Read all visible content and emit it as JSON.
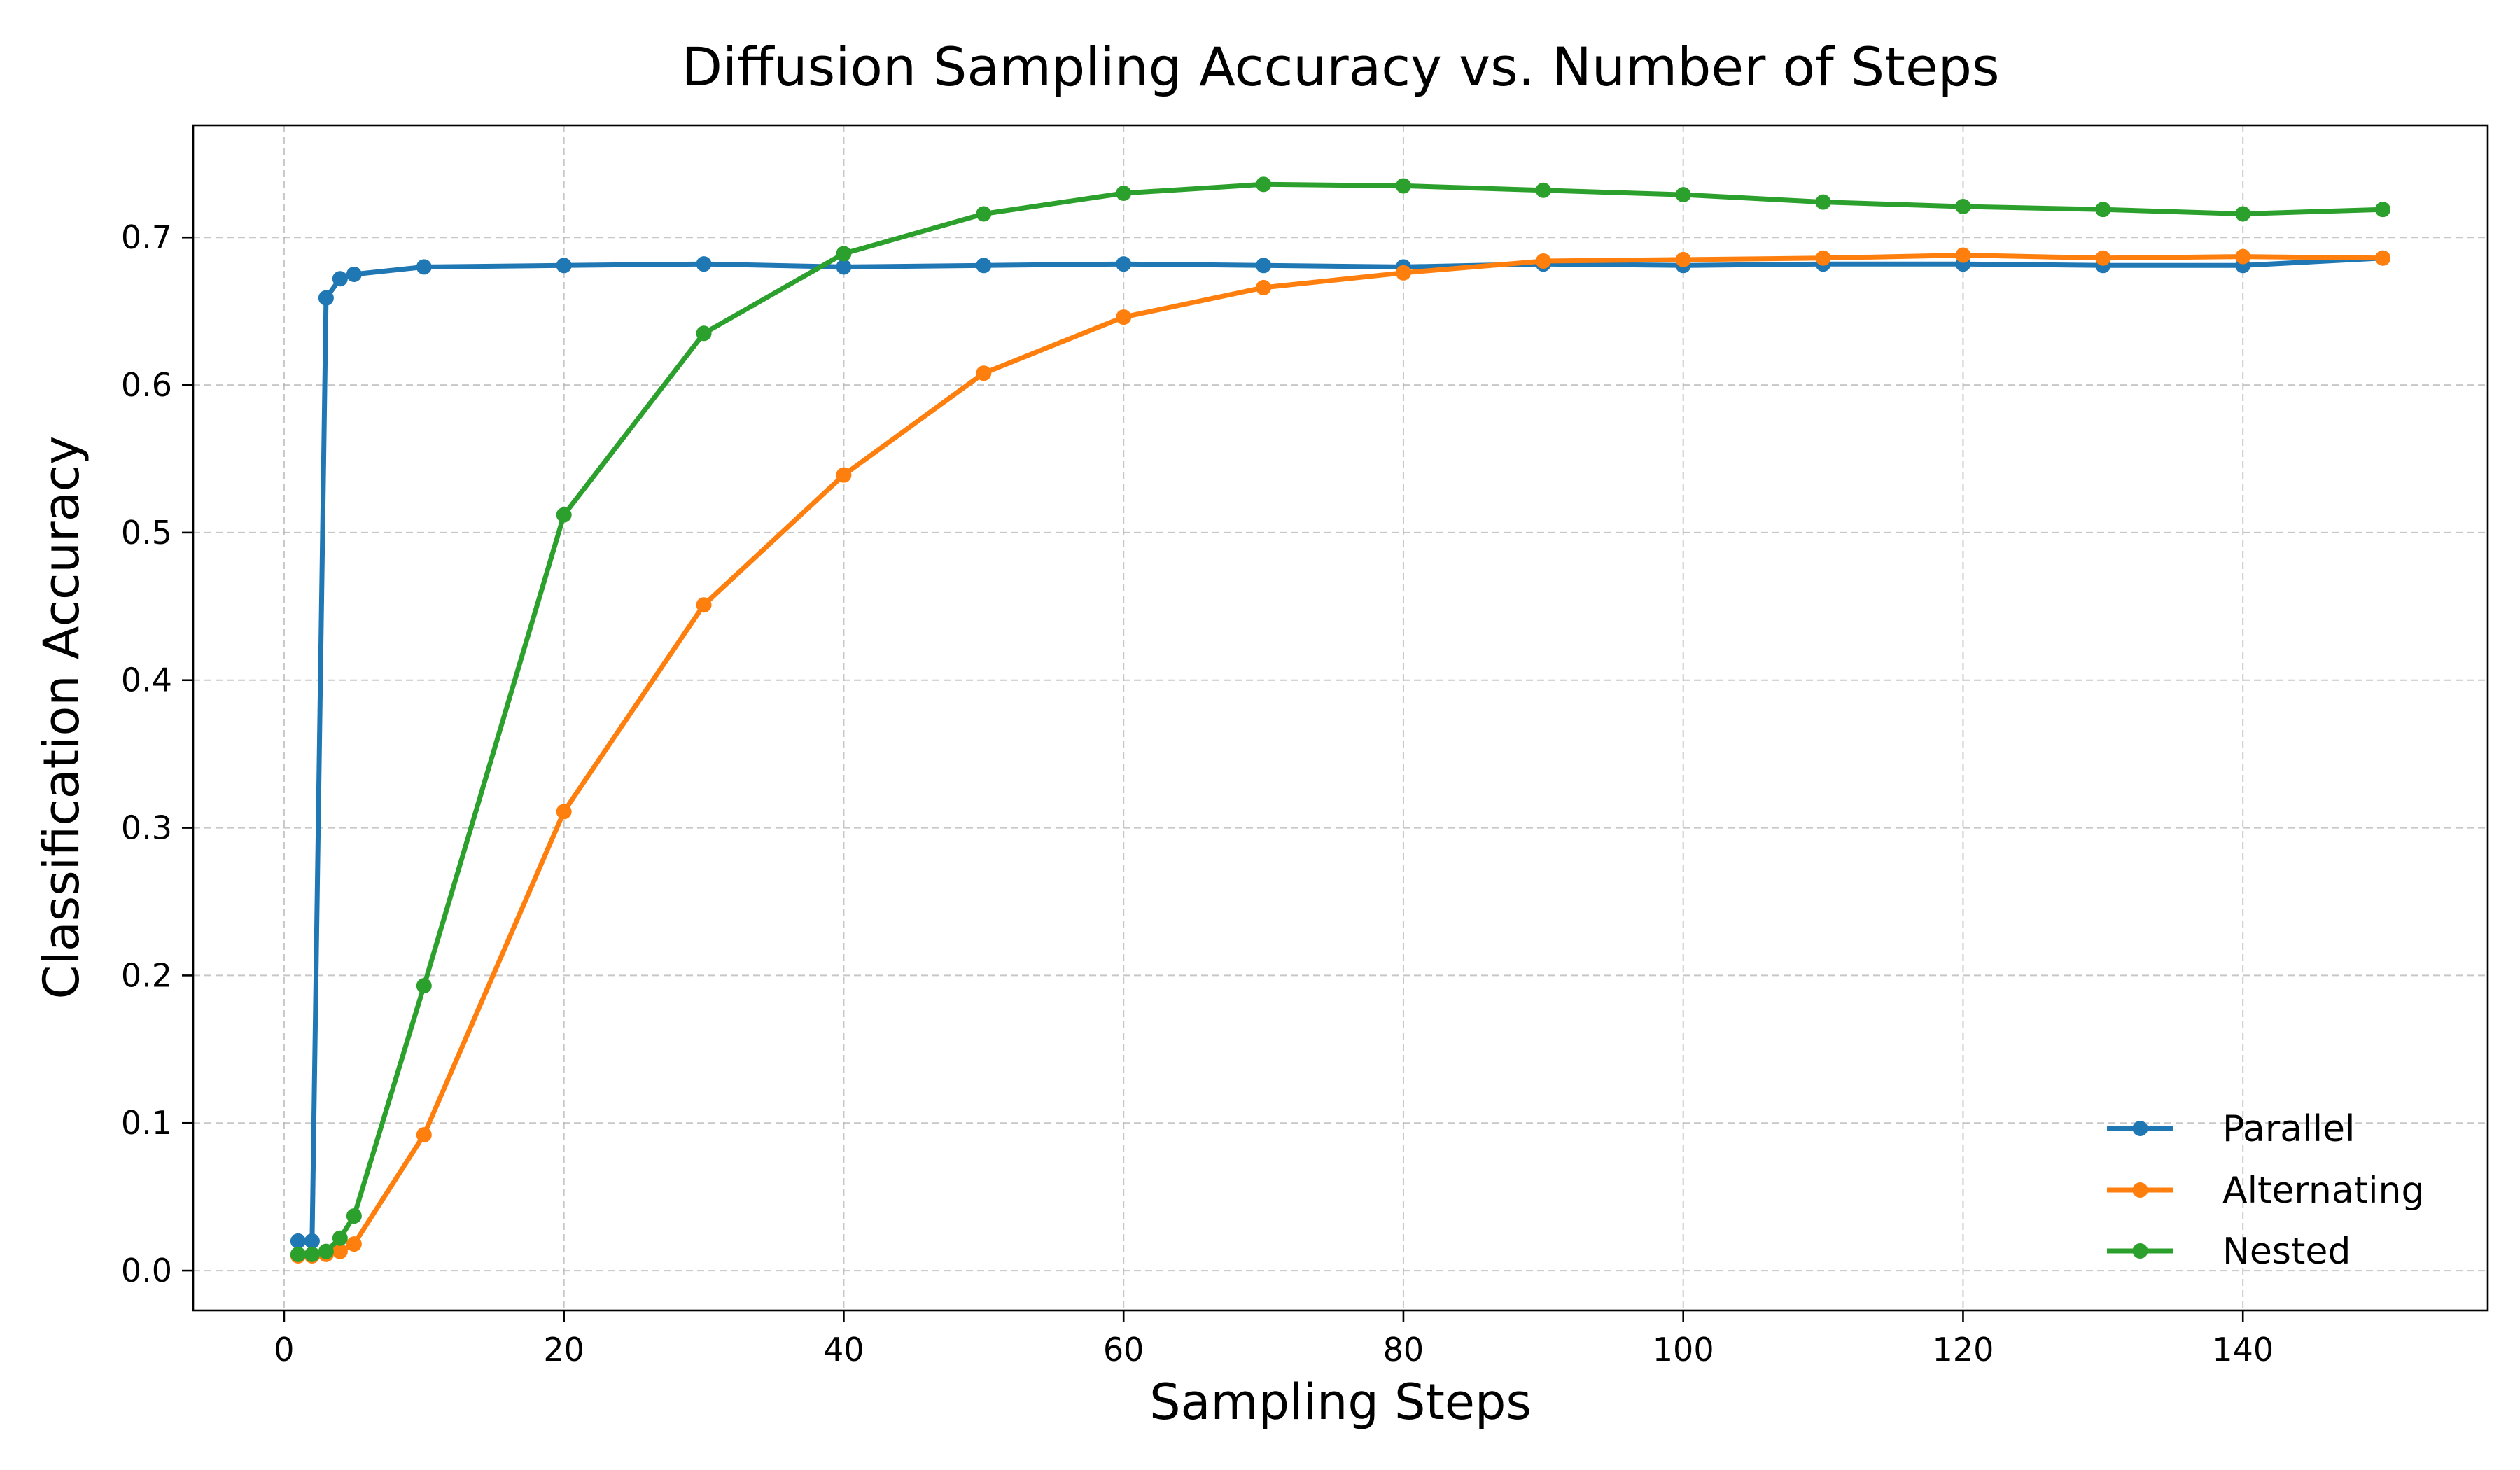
{
  "chart_data": {
    "type": "line",
    "title": "Diffusion Sampling Accuracy vs. Number of Steps",
    "xlabel": "Sampling Steps",
    "ylabel": "Classification Accuracy",
    "xlim": [
      -6.5,
      157.5
    ],
    "ylim": [
      -0.027,
      0.776
    ],
    "xticks": [
      0,
      20,
      40,
      60,
      80,
      100,
      120,
      140
    ],
    "yticks": [
      0.0,
      0.1,
      0.2,
      0.3,
      0.4,
      0.5,
      0.6,
      0.7
    ],
    "xtick_labels": [
      "0",
      "20",
      "40",
      "60",
      "80",
      "100",
      "120",
      "140"
    ],
    "ytick_labels": [
      "0.0",
      "0.1",
      "0.2",
      "0.3",
      "0.4",
      "0.5",
      "0.6",
      "0.7"
    ],
    "grid": true,
    "legend_position": "bottom-right",
    "x": [
      1,
      2,
      3,
      4,
      5,
      10,
      20,
      30,
      40,
      50,
      60,
      70,
      80,
      90,
      100,
      110,
      120,
      130,
      140,
      150
    ],
    "series": [
      {
        "name": "Parallel",
        "color": "#1f77b4",
        "values": [
          0.02,
          0.02,
          0.659,
          0.672,
          0.675,
          0.68,
          0.681,
          0.682,
          0.68,
          0.681,
          0.682,
          0.681,
          0.68,
          0.682,
          0.681,
          0.682,
          0.682,
          0.681,
          0.681,
          0.686
        ]
      },
      {
        "name": "Alternating",
        "color": "#ff7f0e",
        "values": [
          0.01,
          0.01,
          0.011,
          0.013,
          0.018,
          0.092,
          0.311,
          0.451,
          0.539,
          0.608,
          0.646,
          0.666,
          0.676,
          0.684,
          0.685,
          0.686,
          0.688,
          0.686,
          0.687,
          0.686
        ]
      },
      {
        "name": "Nested",
        "color": "#2ca02c",
        "values": [
          0.011,
          0.011,
          0.013,
          0.022,
          0.037,
          0.193,
          0.512,
          0.635,
          0.689,
          0.716,
          0.73,
          0.736,
          0.735,
          0.732,
          0.729,
          0.724,
          0.721,
          0.719,
          0.716,
          0.719
        ]
      }
    ]
  }
}
